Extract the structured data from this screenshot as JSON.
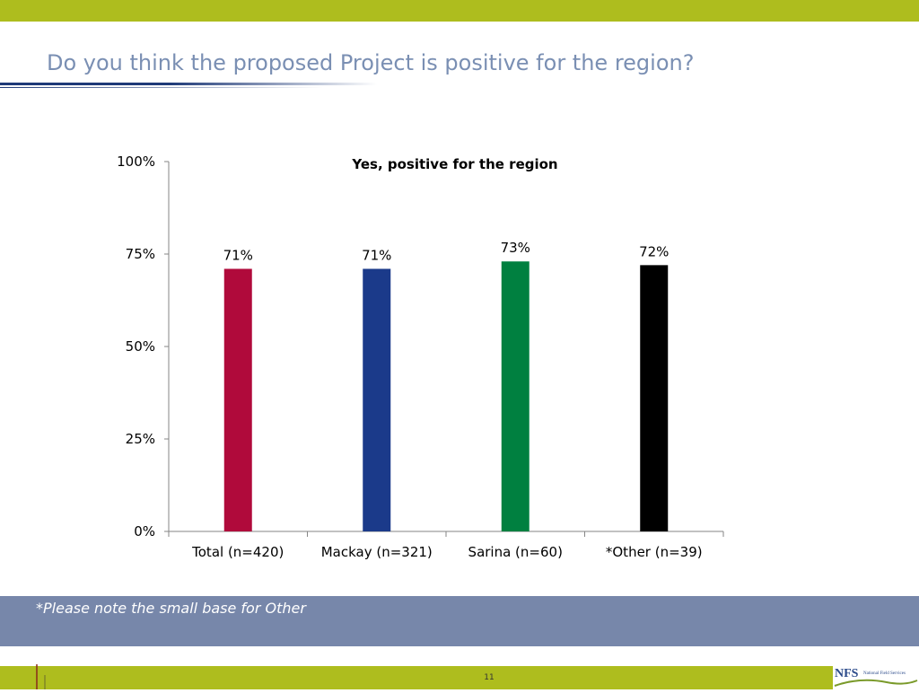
{
  "slide": {
    "title": "Do you think the proposed Project is positive for the region?",
    "note": "*Please note the small base for Other",
    "page_number": "11",
    "logo": {
      "main": "NFS",
      "sub": "National Field Services"
    }
  },
  "colors": {
    "bar_accent": "#aebd1e",
    "title_color": "#7a8fb3",
    "note_band": "#7787aa"
  },
  "chart_data": {
    "type": "bar",
    "title": "Yes, positive for the region",
    "categories": [
      "Total (n=420)",
      "Mackay (n=321)",
      "Sarina (n=60)",
      "*Other (n=39)"
    ],
    "values": [
      71,
      71,
      73,
      72
    ],
    "data_labels": [
      "71%",
      "71%",
      "73%",
      "72%"
    ],
    "bar_colors": [
      "#b00a3b",
      "#1b3a8a",
      "#008040",
      "#000000"
    ],
    "ylim": [
      0,
      100
    ],
    "yticks": [
      0,
      25,
      50,
      75,
      100
    ],
    "ytick_labels": [
      "0%",
      "25%",
      "50%",
      "75%",
      "100%"
    ],
    "grid": false,
    "legend": "none"
  }
}
